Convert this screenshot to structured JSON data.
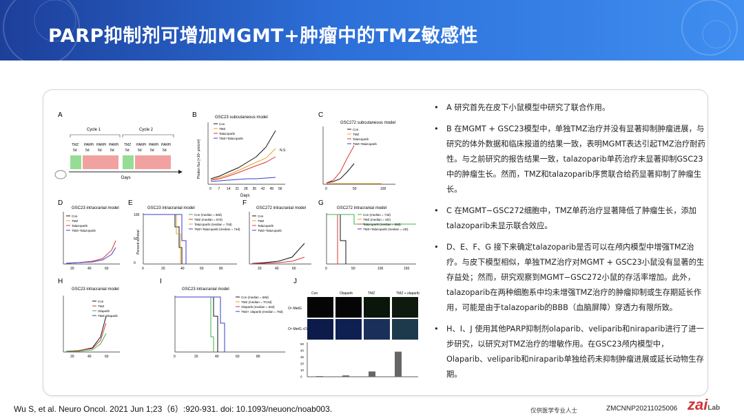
{
  "slide": {
    "title": "PARP抑制剂可增加MGMT+肿瘤中的TMZ敏感性",
    "accent_color": "#2c6fd8"
  },
  "bullets": [
    {
      "marker": "•",
      "text": "A 研究首先在皮下小鼠模型中研究了联合作用。"
    },
    {
      "marker": "•",
      "text": "B 在MGMT + GSC23模型中，单独TMZ治疗并没有显著抑制肿瘤进展，与研究的体外数据和临床报道的结果一致，表明MGMT表达引起TMZ治疗耐药性。与之前研究的报告结果一致，talazoparib单药治疗未显著抑制GSC23中的肿瘤生长。然而，TMZ和talazoparib序贯联合给药显著抑制了肿瘤生长。"
    },
    {
      "marker": "•",
      "text": "C 在MGMT−GSC272细胞中，TMZ单药治疗显著降低了肿瘤生长，添加talazoparib未显示联合效应。"
    },
    {
      "marker": "•",
      "text": "D、E、F、G 接下来确定talazoparib是否可以在颅内模型中增强TMZ治疗。与皮下模型相似，单独TMZ治疗对MGMT + GSC23小鼠没有显著的生存益处；然而，研究观察到MGMT−GSC272小鼠的存活率增加。此外，talazoparib在两种细胞系中均未增强TMZ治疗的肿瘤抑制或生存期延长作用，可能是由于talazoparib的BBB（血脑屏障）穿透力有限所致。"
    },
    {
      "marker": "•",
      "text": "H、I、J 使用其他PARP抑制剂olaparib、veliparib和niraparib进行了进一步研究，以研究对TMZ治疗的增敏作用。在GSC23颅内模型中，Olaparib、veliparib和niraparib单独给药未抑制肿瘤进展或延长动物生存期。"
    }
  ],
  "figure": {
    "panel_letters": [
      "A",
      "B",
      "C",
      "D",
      "E",
      "F",
      "G",
      "H",
      "I",
      "J"
    ],
    "a_cycle1": "Cycle 1",
    "a_cycle2": "Cycle 2",
    "a_days": "Days",
    "a_labels": [
      "TMZ",
      "PARPi",
      "PARPi",
      "PARPi",
      "TMZ",
      "PARPi",
      "PARPi",
      "PARPi"
    ],
    "a_sub": [
      "5d",
      "5d",
      "5d",
      "5d",
      "5d",
      "5d",
      "5d",
      "5d"
    ],
    "b_title": "GSC23 subcutaneous model",
    "b_ylabel": "Photon flux [×10⁸ p/s/cm²]",
    "b_xlabel": "Days",
    "b_ticks": [
      "0",
      "7",
      "14",
      "21",
      "28",
      "35",
      "42",
      "49",
      "56"
    ],
    "b_legend": [
      "Con",
      "TMZ",
      "Talazoparib",
      "TMZ+Talazoparib"
    ],
    "b_ns": "N.S",
    "c_title": "GSC272 subcutaneous model",
    "c_legend": [
      "Con",
      "TMZ",
      "Talazoparib",
      "TMZ+Talazoparib"
    ],
    "c_ticks": [
      "0",
      "50",
      "100"
    ],
    "d_title": "GSC23 intracranial model",
    "d_legend": [
      "Con",
      "TMZ",
      "Talazoparib",
      "TMZ+Talazoparib"
    ],
    "d_ticks": [
      "20",
      "40",
      "60"
    ],
    "e_title": "GSC23 intracranial model",
    "e_legend": [
      "Con (median = 68d)",
      "TMZ (median = 67d)",
      "Talazoparib (median = 70d)",
      "TMZ+Talazoparib (median = 74d)"
    ],
    "e_ylabel": "Percent survival",
    "e_yticks": [
      "100",
      "50",
      "0"
    ],
    "e_xticks": [
      "0",
      "20",
      "40",
      "60",
      "80"
    ],
    "f_title": "GSC272 intracranial model",
    "f_legend": [
      "Con",
      "TMZ",
      "Talazoparib",
      "TMZ+Talazoparib"
    ],
    "f_ticks": [
      "20",
      "40",
      "60"
    ],
    "g_title": "GSC272 intracranial model",
    "g_legend": [
      "Con (median = 74d)",
      "TMZ (median = UD)",
      "Talazoparib (median = 66d)",
      "TMZ+Talazoparib (median = UD)"
    ],
    "g_xticks": [
      "0",
      "50",
      "100",
      "150"
    ],
    "h_title": "GSC23 intracranial model",
    "h_legend": [
      "Con",
      "TMZ",
      "Olaparib",
      "TMZ+Olaparib"
    ],
    "h_ticks": [
      "20",
      "40",
      "60"
    ],
    "i_title": "GSC23 intracranial model",
    "i_legend": [
      "Con (median = 68d)",
      "TMZ (median = 70.5d)",
      "Olaparib (median = 64d)",
      "TMZ+ olaparib (median = 78d)"
    ],
    "i_xticks": [
      "0",
      "20",
      "40",
      "60",
      "80"
    ],
    "j_cols": [
      "Con",
      "Olaparib",
      "TMZ",
      "TMZ + olaparib"
    ],
    "j_row1": "O⁶-MetG",
    "j_row2": "O⁶-MetG +DAPI",
    "j_ylabel": "O⁶-MetG positive cells%",
    "j_yticks": [
      "50",
      "40",
      "30",
      "20",
      "10",
      "0"
    ],
    "bar_values": [
      1,
      2,
      8,
      38
    ]
  },
  "footer": {
    "reference": "Wu S, et al. Neuro Oncol. 2021 Jun 1;23（6）:920-931. doi: 10.1093/neuonc/noab003.",
    "watermark": "仅供医学专业人士",
    "code": "ZMCNNP20211025006",
    "logo": "zai",
    "logo_sub": "Lab"
  }
}
